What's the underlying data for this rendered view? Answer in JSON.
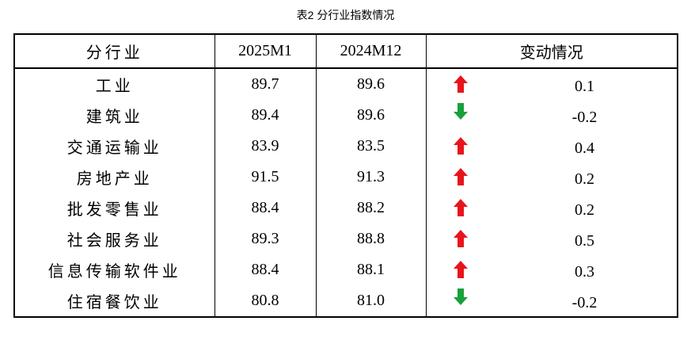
{
  "title": "表2 分行业指数情况",
  "table": {
    "header": [
      "分行业",
      "2025M1",
      "2024M12",
      "变动情况"
    ],
    "rows": [
      [
        "工业",
        "89.7",
        "89.6",
        "0.1"
      ],
      [
        "建筑业",
        "89.4",
        "89.6",
        "-0.2"
      ],
      [
        "交通运输业",
        "83.9",
        "83.5",
        "0.4"
      ],
      [
        "房地产业",
        "91.5",
        "91.3",
        "0.2"
      ],
      [
        "批发零售业",
        "88.4",
        "88.2",
        "0.2"
      ],
      [
        "社会服务业",
        "89.3",
        "88.8",
        "0.5"
      ],
      [
        "信息传输软件业",
        "88.4",
        "88.1",
        "0.3"
      ],
      [
        "住宿餐饮业",
        "80.8",
        "81.0",
        "-0.2"
      ]
    ]
  }
}
